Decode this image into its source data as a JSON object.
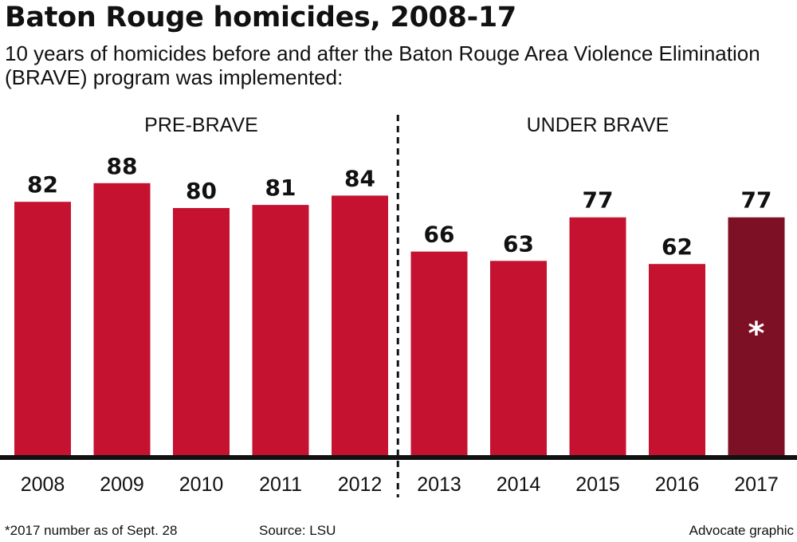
{
  "header": {
    "title": "Baton Rouge homicides, 2008-17",
    "subtitle": "10 years of homicides before and after the Baton Rouge Area Violence Elimination (BRAVE) program was implemented:"
  },
  "chart_data": {
    "type": "bar",
    "categories": [
      "2008",
      "2009",
      "2010",
      "2011",
      "2012",
      "2013",
      "2014",
      "2015",
      "2016",
      "2017"
    ],
    "values": [
      82,
      88,
      80,
      81,
      84,
      66,
      63,
      77,
      62,
      77
    ],
    "ylim": [
      0,
      100
    ],
    "groups": [
      {
        "label": "PRE-BRAVE",
        "categories": [
          "2008",
          "2009",
          "2010",
          "2011",
          "2012"
        ]
      },
      {
        "label": "UNDER BRAVE",
        "categories": [
          "2013",
          "2014",
          "2015",
          "2016",
          "2017"
        ]
      }
    ],
    "annotations": [
      {
        "category": "2017",
        "text": "*"
      }
    ],
    "colors": {
      "bar": "#c41230",
      "highlight": "#7d1024",
      "axis": "#111111"
    }
  },
  "footer": {
    "note": "*2017 number as of Sept. 28",
    "source": "Source: LSU",
    "credit": "Advocate graphic"
  }
}
